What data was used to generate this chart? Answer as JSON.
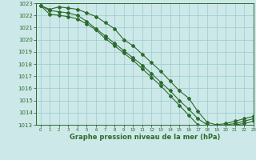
{
  "x": [
    0,
    1,
    2,
    3,
    4,
    5,
    6,
    7,
    8,
    9,
    10,
    11,
    12,
    13,
    14,
    15,
    16,
    17,
    18,
    19,
    20,
    21,
    22,
    23
  ],
  "line1": [
    1022.8,
    1022.5,
    1022.7,
    1022.6,
    1022.5,
    1022.2,
    1021.9,
    1021.4,
    1020.9,
    1020.0,
    1019.5,
    1018.8,
    1018.1,
    1017.4,
    1016.6,
    1015.8,
    1015.2,
    1014.1,
    1013.2,
    1013.0,
    1013.1,
    1013.3,
    1013.5,
    1013.7
  ],
  "line2": [
    1022.8,
    1022.4,
    1022.3,
    1022.2,
    1022.0,
    1021.5,
    1020.9,
    1020.3,
    1019.7,
    1019.1,
    1018.5,
    1017.9,
    1017.2,
    1016.5,
    1015.8,
    1015.0,
    1014.3,
    1013.5,
    1013.0,
    1012.9,
    1013.0,
    1013.1,
    1013.3,
    1013.5
  ],
  "line3": [
    1022.8,
    1022.1,
    1022.0,
    1021.9,
    1021.7,
    1021.3,
    1020.8,
    1020.1,
    1019.5,
    1018.9,
    1018.3,
    1017.6,
    1016.9,
    1016.2,
    1015.4,
    1014.6,
    1013.8,
    1013.0,
    1012.85,
    1012.8,
    1012.85,
    1013.0,
    1013.1,
    1013.3
  ],
  "line_color": "#2d6a2d",
  "bg_color": "#cce8e8",
  "grid_color": "#99cccc",
  "axis_color": "#2d6a2d",
  "text_color": "#2d6a2d",
  "xlabel": "Graphe pression niveau de la mer (hPa)",
  "ylim": [
    1013,
    1023
  ],
  "xlim": [
    -0.5,
    23
  ],
  "yticks": [
    1013,
    1014,
    1015,
    1016,
    1017,
    1018,
    1019,
    1020,
    1021,
    1022,
    1023
  ],
  "xticks": [
    0,
    1,
    2,
    3,
    4,
    5,
    6,
    7,
    8,
    9,
    10,
    11,
    12,
    13,
    14,
    15,
    16,
    17,
    18,
    19,
    20,
    21,
    22,
    23
  ],
  "marker": "D",
  "marker_size": 2,
  "line_width": 0.8
}
